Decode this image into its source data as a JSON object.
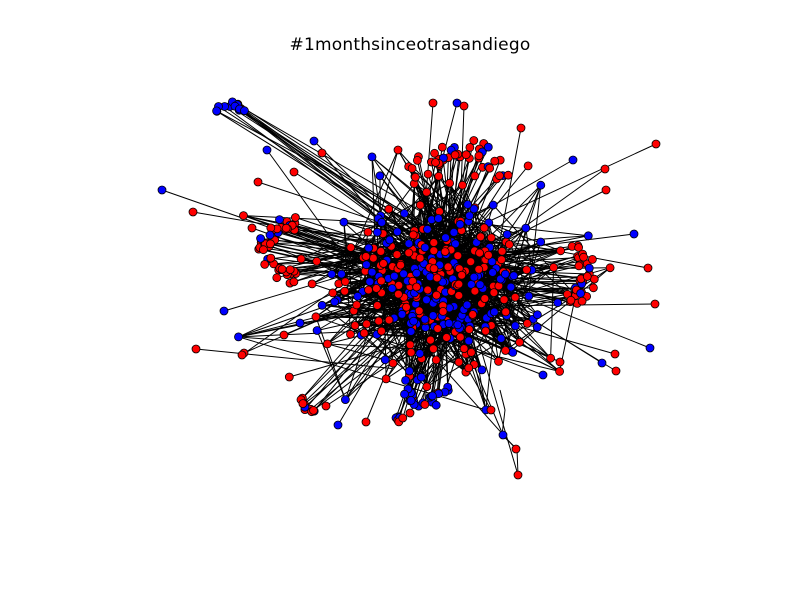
{
  "title": "#1monthsinceotrasandiego",
  "colors": {
    "node_red": "#ff0000",
    "node_blue": "#0000ff",
    "edge": "#000000",
    "node_outline": "#000000",
    "background": "#ffffff"
  }
}
